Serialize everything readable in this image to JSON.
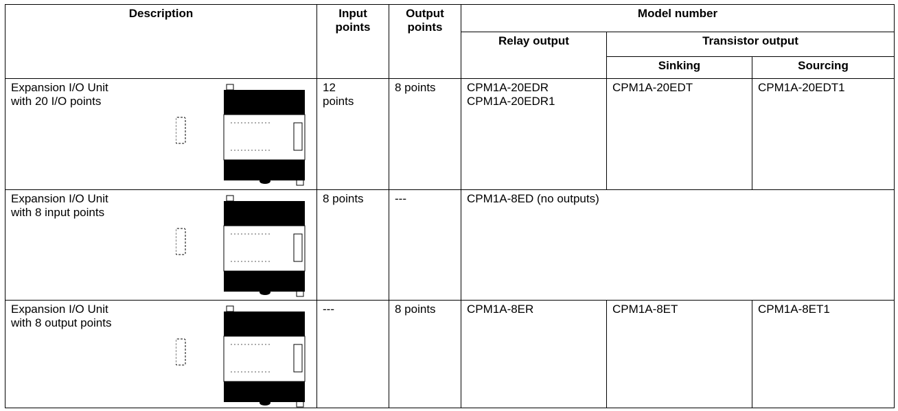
{
  "header": {
    "description": "Description",
    "input_points": [
      "Input",
      "points"
    ],
    "output_points": [
      "Output",
      "points"
    ],
    "model_number": "Model number",
    "relay_output": "Relay output",
    "transistor_output": "Transistor output",
    "sinking": "Sinking",
    "sourcing": "Sourcing"
  },
  "rows": [
    {
      "description": [
        "Expansion I/O Unit",
        "with 20 I/O points"
      ],
      "input_points": [
        "12",
        "points"
      ],
      "output_points": "8 points",
      "relay_output": [
        "CPM1A-20EDR",
        "CPM1A-20EDR1"
      ],
      "sinking": "CPM1A-20EDT",
      "sourcing": "CPM1A-20EDT1"
    },
    {
      "description": [
        "Expansion I/O Unit",
        "with 8 input points"
      ],
      "input_points": "8 points",
      "output_points": "---",
      "model_number": "CPM1A-8ED (no outputs)"
    },
    {
      "description": [
        "Expansion I/O Unit",
        "with 8 output points"
      ],
      "input_points": "---",
      "output_points": "8 points",
      "relay_output": "CPM1A-8ER",
      "sinking": "CPM1A-8ET",
      "sourcing": "CPM1A-8ET1"
    }
  ]
}
